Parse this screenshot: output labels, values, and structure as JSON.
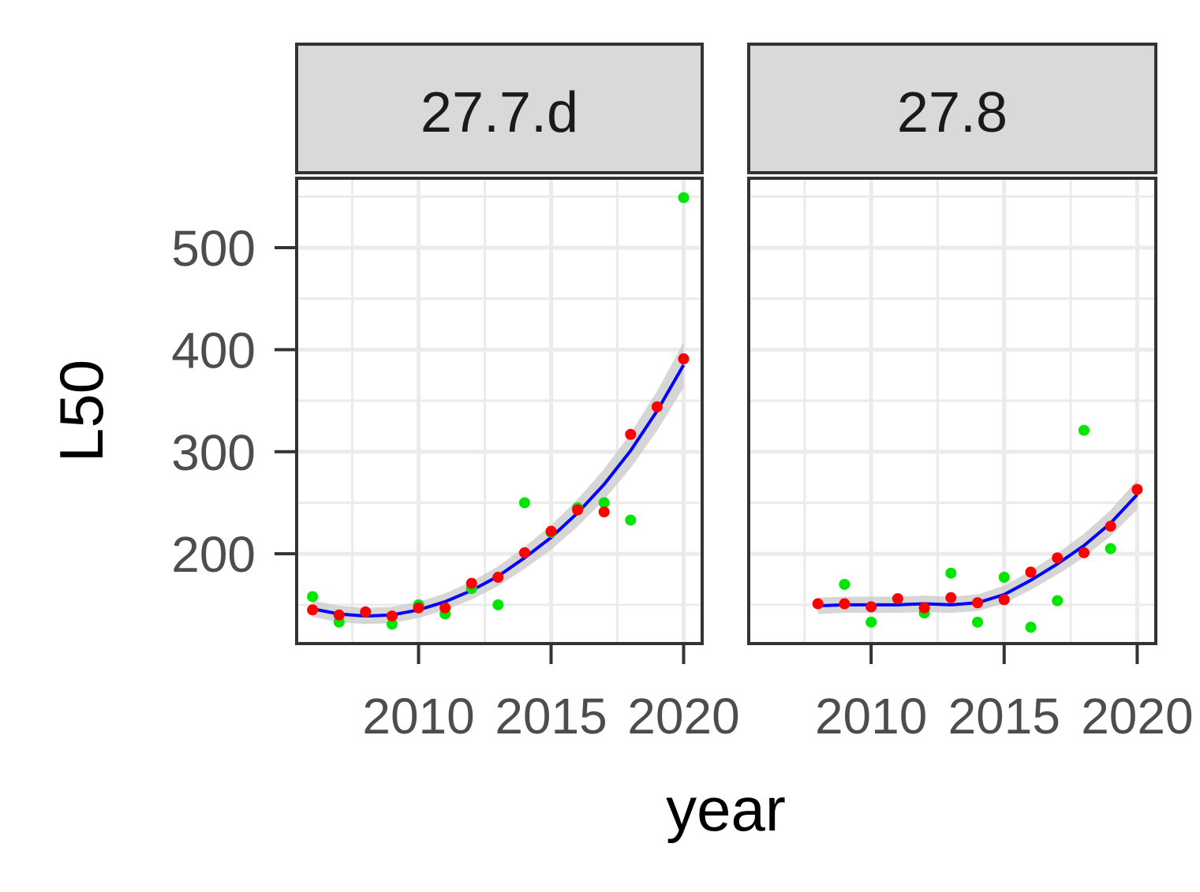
{
  "chart_data": {
    "type": "scatter",
    "facets": [
      "27.7.d",
      "27.8"
    ],
    "xlabel": "year",
    "ylabel": "L50",
    "xlim": [
      2005.4,
      2020.7
    ],
    "ylim": [
      112,
      568
    ],
    "x_ticks": [
      2010,
      2015,
      2020
    ],
    "y_ticks": [
      200,
      300,
      400,
      500
    ],
    "grid": true,
    "colors": {
      "observed": "#00e600",
      "fitted": "#ff0000",
      "smooth": "#0000ff",
      "ribbon": "#c8c8c8",
      "strip": "#d9d9d9",
      "grid": "#ebebeb",
      "border": "#333333"
    },
    "panels": [
      {
        "facet": "27.7.d",
        "observed": [
          {
            "x": 2006,
            "y": 158
          },
          {
            "x": 2007,
            "y": 133
          },
          {
            "x": 2008,
            "y": 143
          },
          {
            "x": 2009,
            "y": 131
          },
          {
            "x": 2010,
            "y": 150
          },
          {
            "x": 2011,
            "y": 141
          },
          {
            "x": 2012,
            "y": 166
          },
          {
            "x": 2013,
            "y": 150
          },
          {
            "x": 2014,
            "y": 250
          },
          {
            "x": 2015,
            "y": 221
          },
          {
            "x": 2016,
            "y": 245
          },
          {
            "x": 2017,
            "y": 250
          },
          {
            "x": 2018,
            "y": 233
          },
          {
            "x": 2020,
            "y": 549
          }
        ],
        "fitted": [
          {
            "x": 2006,
            "y": 145
          },
          {
            "x": 2007,
            "y": 140
          },
          {
            "x": 2008,
            "y": 143
          },
          {
            "x": 2009,
            "y": 139
          },
          {
            "x": 2010,
            "y": 147
          },
          {
            "x": 2011,
            "y": 147
          },
          {
            "x": 2012,
            "y": 171
          },
          {
            "x": 2013,
            "y": 177
          },
          {
            "x": 2014,
            "y": 201
          },
          {
            "x": 2015,
            "y": 222
          },
          {
            "x": 2016,
            "y": 243
          },
          {
            "x": 2017,
            "y": 241
          },
          {
            "x": 2018,
            "y": 317
          },
          {
            "x": 2019,
            "y": 344
          },
          {
            "x": 2020,
            "y": 391
          }
        ],
        "smooth": [
          {
            "x": 2006,
            "y": 146
          },
          {
            "x": 2007,
            "y": 141
          },
          {
            "x": 2008,
            "y": 139
          },
          {
            "x": 2009,
            "y": 140
          },
          {
            "x": 2010,
            "y": 145
          },
          {
            "x": 2011,
            "y": 153
          },
          {
            "x": 2012,
            "y": 164
          },
          {
            "x": 2013,
            "y": 178
          },
          {
            "x": 2014,
            "y": 196
          },
          {
            "x": 2015,
            "y": 216
          },
          {
            "x": 2016,
            "y": 240
          },
          {
            "x": 2017,
            "y": 268
          },
          {
            "x": 2018,
            "y": 301
          },
          {
            "x": 2019,
            "y": 340
          },
          {
            "x": 2020,
            "y": 385
          }
        ]
      },
      {
        "facet": "27.8",
        "observed": [
          {
            "x": 2009,
            "y": 170
          },
          {
            "x": 2010,
            "y": 133
          },
          {
            "x": 2012,
            "y": 142
          },
          {
            "x": 2013,
            "y": 181
          },
          {
            "x": 2014,
            "y": 133
          },
          {
            "x": 2015,
            "y": 177
          },
          {
            "x": 2016,
            "y": 128
          },
          {
            "x": 2017,
            "y": 154
          },
          {
            "x": 2018,
            "y": 321
          },
          {
            "x": 2019,
            "y": 205
          }
        ],
        "fitted": [
          {
            "x": 2008,
            "y": 151
          },
          {
            "x": 2009,
            "y": 151
          },
          {
            "x": 2010,
            "y": 148
          },
          {
            "x": 2011,
            "y": 156
          },
          {
            "x": 2012,
            "y": 147
          },
          {
            "x": 2013,
            "y": 157
          },
          {
            "x": 2014,
            "y": 152
          },
          {
            "x": 2015,
            "y": 155
          },
          {
            "x": 2016,
            "y": 182
          },
          {
            "x": 2017,
            "y": 196
          },
          {
            "x": 2018,
            "y": 201
          },
          {
            "x": 2019,
            "y": 227
          },
          {
            "x": 2020,
            "y": 263
          }
        ],
        "smooth": [
          {
            "x": 2008,
            "y": 149
          },
          {
            "x": 2009,
            "y": 150
          },
          {
            "x": 2010,
            "y": 150
          },
          {
            "x": 2011,
            "y": 150
          },
          {
            "x": 2012,
            "y": 151
          },
          {
            "x": 2013,
            "y": 150
          },
          {
            "x": 2014,
            "y": 152
          },
          {
            "x": 2015,
            "y": 160
          },
          {
            "x": 2016,
            "y": 174
          },
          {
            "x": 2017,
            "y": 190
          },
          {
            "x": 2018,
            "y": 208
          },
          {
            "x": 2019,
            "y": 230
          },
          {
            "x": 2020,
            "y": 258
          }
        ]
      }
    ]
  }
}
